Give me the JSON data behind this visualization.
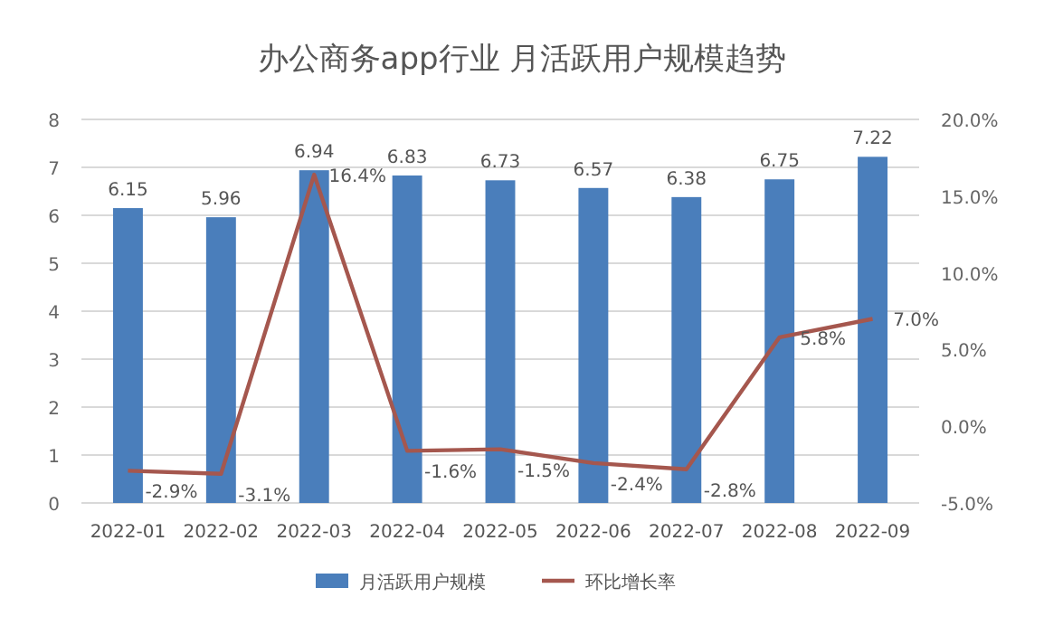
{
  "chart_data": {
    "type": "bar",
    "title": "办公商务app行业 月活跃用户规模趋势",
    "categories": [
      "2022-01",
      "2022-02",
      "2022-03",
      "2022-04",
      "2022-05",
      "2022-06",
      "2022-07",
      "2022-08",
      "2022-09"
    ],
    "series": [
      {
        "name": "月活跃用户规模",
        "color": "#4a7ebb",
        "values": [
          6.15,
          5.96,
          6.94,
          6.83,
          6.73,
          6.57,
          6.38,
          6.75,
          7.22
        ]
      },
      {
        "name": "环比增长率",
        "type": "line",
        "axis": "y2",
        "color": "#a5574e",
        "values": [
          -2.9,
          -3.1,
          16.4,
          -1.6,
          -1.5,
          -2.4,
          -2.8,
          5.8,
          7.0
        ],
        "value_labels": [
          "-2.9%",
          "-3.1%",
          "16.4%",
          "-1.6%",
          "-1.5%",
          "-2.4%",
          "-2.8%",
          "5.8%",
          "7.0%"
        ]
      }
    ],
    "ylim": [
      0,
      8
    ],
    "yticks": [
      0,
      1,
      2,
      3,
      4,
      5,
      6,
      7,
      8
    ],
    "y2lim": [
      -5,
      20
    ],
    "y2ticks": [
      {
        "value": -5,
        "label": "-5.0%"
      },
      {
        "value": 0,
        "label": "0.0%"
      },
      {
        "value": 5,
        "label": "5.0%"
      },
      {
        "value": 10,
        "label": "10.0%"
      },
      {
        "value": 15,
        "label": "15.0%"
      },
      {
        "value": 20,
        "label": "20.0%"
      }
    ],
    "grid": "y",
    "legend": "bottom",
    "data_labels": true,
    "marker": "none",
    "line_style": "solid"
  }
}
